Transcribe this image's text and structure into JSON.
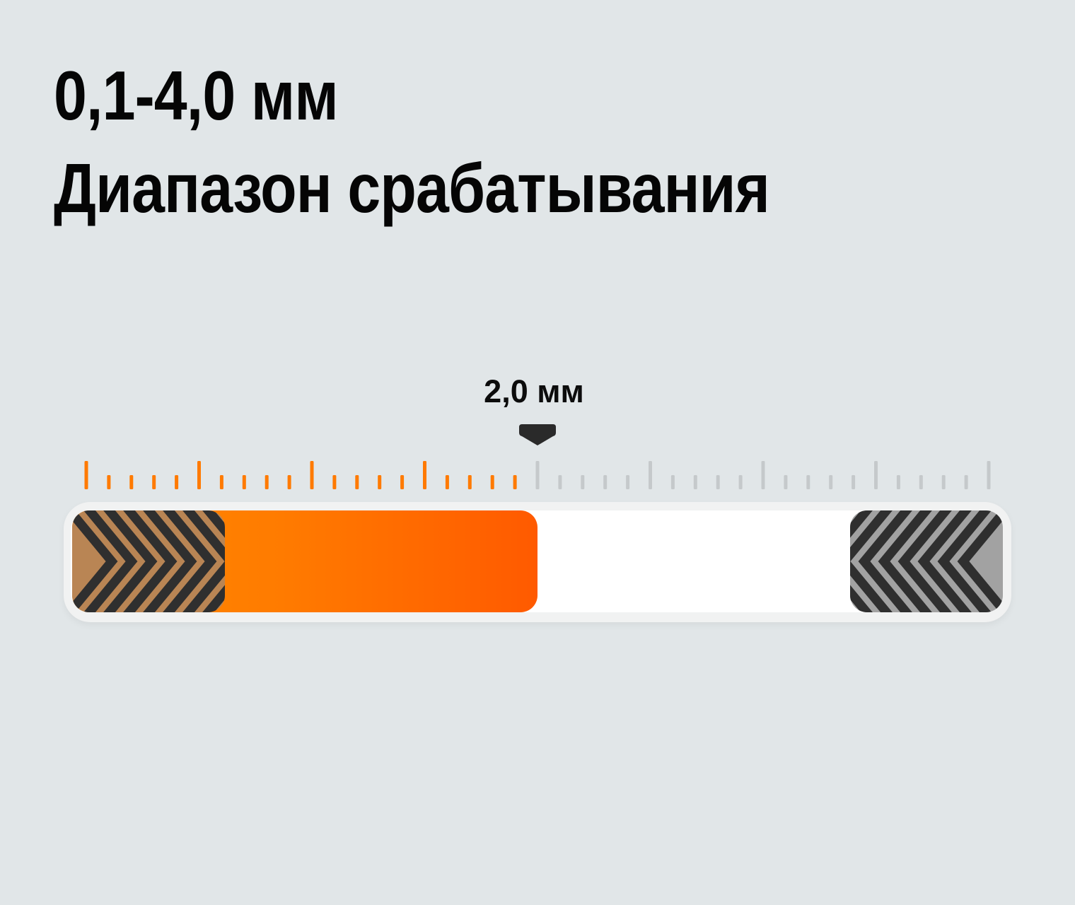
{
  "headline": {
    "line1": "0,1-4,0 мм",
    "line2": "Диапазон срабатывания"
  },
  "slider": {
    "value_label": "2,0 мм",
    "min": 0.1,
    "max": 4.0,
    "value": 2.0,
    "ticks": 41,
    "colors": {
      "active_tick": "#ff7a00",
      "inactive_tick": "#c5c9cb",
      "fill_start": "#ff8a00",
      "fill_end": "#ff5a00",
      "track": "#ffffff",
      "marker": "#2a2a2a",
      "left_pad": "#b98554",
      "right_pad": "#a2a2a2",
      "pad_stripe": "#2f2f2f"
    },
    "icons": {
      "marker": "caret-down-icon",
      "left_pad": "chevron-right-pattern-icon",
      "right_pad": "chevron-left-pattern-icon"
    }
  }
}
